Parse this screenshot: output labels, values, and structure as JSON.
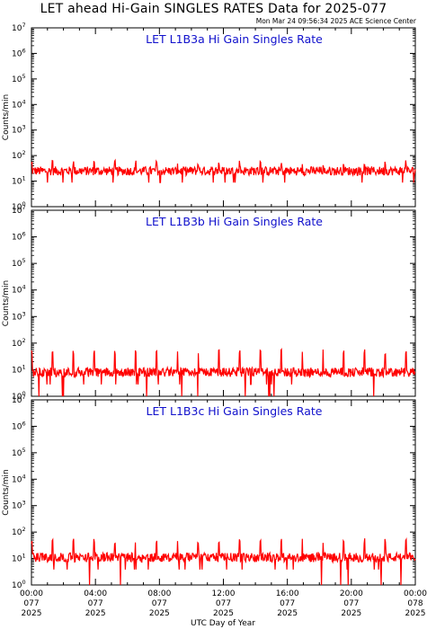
{
  "header": {
    "title": "LET ahead Hi-Gain SINGLES RATES Data for 2025-077",
    "timestamp": "Mon Mar 24 09:56:34 2025 ACE Science Center"
  },
  "chart_data": [
    {
      "type": "line",
      "title": "LET L1B3a Hi Gain Singles Rate",
      "ylabel": "Counts/min",
      "yscale": "log",
      "ylim": [
        1,
        10000000
      ],
      "xlim": [
        0,
        24
      ],
      "base_level": 25,
      "spike_period_hours": 1.3,
      "spike_level": 50,
      "color": "#ff0000"
    },
    {
      "type": "line",
      "title": "LET L1B3b Hi Gain Singles Rate",
      "ylabel": "Counts/min",
      "yscale": "log",
      "ylim": [
        1,
        10000000
      ],
      "xlim": [
        0,
        24
      ],
      "base_level": 8,
      "spike_period_hours": 1.3,
      "spike_level": 45,
      "color": "#ff0000"
    },
    {
      "type": "line",
      "title": "LET L1B3c Hi Gain Singles Rate",
      "ylabel": "Counts/min",
      "yscale": "log",
      "ylim": [
        1,
        10000000
      ],
      "xlim": [
        0,
        24
      ],
      "base_level": 11,
      "spike_period_hours": 1.3,
      "spike_level": 45,
      "color": "#ff0000"
    }
  ],
  "y_ticks": [
    {
      "base": "10",
      "exp": "0"
    },
    {
      "base": "10",
      "exp": "1"
    },
    {
      "base": "10",
      "exp": "2"
    },
    {
      "base": "10",
      "exp": "3"
    },
    {
      "base": "10",
      "exp": "4"
    },
    {
      "base": "10",
      "exp": "5"
    },
    {
      "base": "10",
      "exp": "6"
    },
    {
      "base": "10",
      "exp": "7"
    }
  ],
  "x_ticks": [
    {
      "time": "00:00",
      "doy": "077",
      "year": "2025"
    },
    {
      "time": "04:00",
      "doy": "077",
      "year": "2025"
    },
    {
      "time": "08:00",
      "doy": "077",
      "year": "2025"
    },
    {
      "time": "12:00",
      "doy": "077",
      "year": "2025"
    },
    {
      "time": "16:00",
      "doy": "077",
      "year": "2025"
    },
    {
      "time": "20:00",
      "doy": "077",
      "year": "2025"
    },
    {
      "time": "00:00",
      "doy": "078",
      "year": "2025"
    }
  ],
  "xlabel": "UTC Day of Year"
}
